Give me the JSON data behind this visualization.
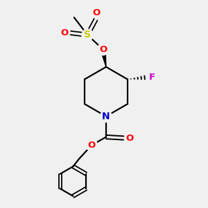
{
  "background_color": "#f0f0f0",
  "bond_color": "#000000",
  "atom_colors": {
    "N": "#0000cc",
    "O": "#ff0000",
    "F": "#cc00cc",
    "S": "#cccc00",
    "C": "#000000"
  },
  "figsize": [
    3.0,
    3.0
  ],
  "dpi": 100
}
